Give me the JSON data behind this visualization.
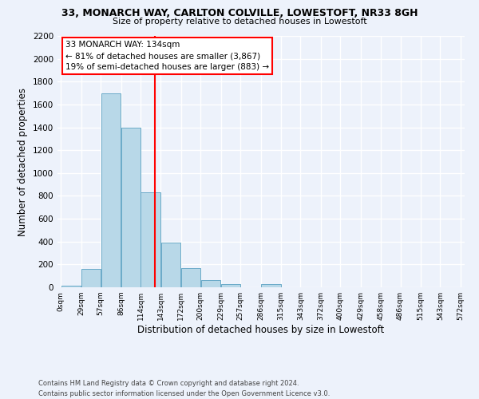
{
  "title_line1": "33, MONARCH WAY, CARLTON COLVILLE, LOWESTOFT, NR33 8GH",
  "title_line2": "Size of property relative to detached houses in Lowestoft",
  "xlabel": "Distribution of detached houses by size in Lowestoft",
  "ylabel": "Number of detached properties",
  "bar_left_edges": [
    0,
    29,
    57,
    86,
    114,
    143,
    172,
    200,
    229,
    257,
    286,
    315,
    343,
    372,
    400,
    429,
    458,
    486,
    515,
    543
  ],
  "bar_widths": [
    29,
    28,
    29,
    28,
    29,
    29,
    28,
    29,
    28,
    29,
    29,
    28,
    29,
    28,
    29,
    29,
    28,
    29,
    28,
    29
  ],
  "bar_heights": [
    15,
    160,
    1700,
    1400,
    830,
    390,
    170,
    65,
    30,
    0,
    25,
    0,
    0,
    0,
    0,
    0,
    0,
    0,
    0,
    0
  ],
  "bar_color": "#b8d8e8",
  "bar_edgecolor": "#6aaac8",
  "vline_x": 134,
  "vline_color": "red",
  "annotation_line1": "33 MONARCH WAY: 134sqm",
  "annotation_line2": "← 81% of detached houses are smaller (3,867)",
  "annotation_line3": "19% of semi-detached houses are larger (883) →",
  "annotation_box_color": "white",
  "annotation_box_edgecolor": "red",
  "ylim": [
    0,
    2200
  ],
  "yticks": [
    0,
    200,
    400,
    600,
    800,
    1000,
    1200,
    1400,
    1600,
    1800,
    2000,
    2200
  ],
  "xtick_labels": [
    "0sqm",
    "29sqm",
    "57sqm",
    "86sqm",
    "114sqm",
    "143sqm",
    "172sqm",
    "200sqm",
    "229sqm",
    "257sqm",
    "286sqm",
    "315sqm",
    "343sqm",
    "372sqm",
    "400sqm",
    "429sqm",
    "458sqm",
    "486sqm",
    "515sqm",
    "543sqm",
    "572sqm"
  ],
  "xtick_positions": [
    0,
    29,
    57,
    86,
    114,
    143,
    172,
    200,
    229,
    257,
    286,
    315,
    343,
    372,
    400,
    429,
    458,
    486,
    515,
    543,
    572
  ],
  "footer_line1": "Contains HM Land Registry data © Crown copyright and database right 2024.",
  "footer_line2": "Contains public sector information licensed under the Open Government Licence v3.0.",
  "bg_color": "#edf2fb",
  "grid_color": "white",
  "xlim_min": -5,
  "xlim_max": 578
}
